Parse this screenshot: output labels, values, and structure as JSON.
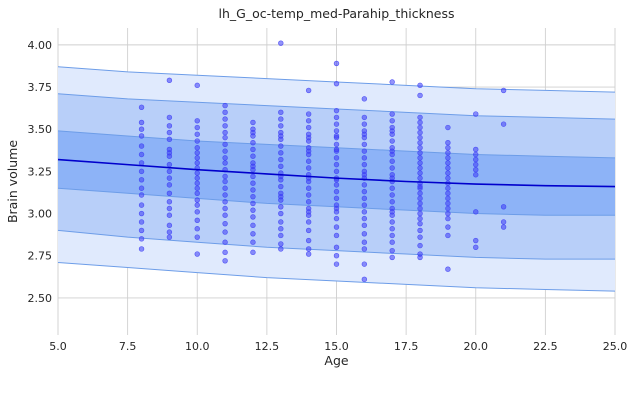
{
  "chart_data": {
    "type": "scatter",
    "title": "lh_G_oc-temp_med-Parahip_thickness",
    "xlabel": "Age",
    "ylabel": "Brain volume",
    "xlim": [
      5.0,
      25.0
    ],
    "ylim": [
      2.28,
      4.1
    ],
    "x_ticks": [
      "5.0",
      "7.5",
      "10.0",
      "12.5",
      "15.0",
      "17.5",
      "20.0",
      "22.5",
      "25.0"
    ],
    "x_tick_values": [
      5.0,
      7.5,
      10.0,
      12.5,
      15.0,
      17.5,
      20.0,
      22.5,
      25.0
    ],
    "y_ticks": [
      "2.50",
      "2.75",
      "3.00",
      "3.25",
      "3.50",
      "3.75",
      "4.00"
    ],
    "y_tick_values": [
      2.5,
      2.75,
      3.0,
      3.25,
      3.5,
      3.75,
      4.0
    ],
    "grid": true,
    "colors": {
      "points": "#3b3bf5",
      "mean_line": "#0000cc",
      "band_inner": "#8db3f7",
      "band_middle": "#b8cff9",
      "band_outer": "#e0eafd",
      "band_edge": "#6d9de8"
    },
    "mean_curve": {
      "x": [
        5,
        7.5,
        10,
        12.5,
        15,
        17.5,
        20,
        22.5,
        25
      ],
      "y": [
        3.32,
        3.29,
        3.26,
        3.235,
        3.21,
        3.19,
        3.175,
        3.165,
        3.16
      ]
    },
    "bands": [
      {
        "level": "outer",
        "upper": [
          3.87,
          3.84,
          3.82,
          3.8,
          3.78,
          3.76,
          3.74,
          3.73,
          3.72
        ],
        "lower": [
          2.71,
          2.68,
          2.65,
          2.62,
          2.6,
          2.58,
          2.56,
          2.55,
          2.54
        ]
      },
      {
        "level": "middle",
        "upper": [
          3.71,
          3.68,
          3.66,
          3.64,
          3.62,
          3.6,
          3.58,
          3.57,
          3.56
        ],
        "lower": [
          2.9,
          2.86,
          2.83,
          2.8,
          2.78,
          2.76,
          2.74,
          2.73,
          2.73
        ]
      },
      {
        "level": "inner",
        "upper": [
          3.49,
          3.46,
          3.43,
          3.41,
          3.39,
          3.37,
          3.35,
          3.34,
          3.33
        ],
        "lower": [
          3.15,
          3.12,
          3.09,
          3.06,
          3.04,
          3.02,
          3.0,
          2.99,
          2.99
        ]
      }
    ],
    "points": {
      "x": [
        8,
        8,
        8,
        8,
        8,
        8,
        8,
        8,
        8,
        8,
        8,
        8,
        8,
        8,
        8,
        8,
        8,
        9,
        9,
        9,
        9,
        9,
        9,
        9,
        9,
        9,
        9,
        9,
        9,
        9,
        9,
        9,
        9,
        9,
        9,
        9,
        10,
        10,
        10,
        10,
        10,
        10,
        10,
        10,
        10,
        10,
        10,
        10,
        10,
        10,
        10,
        10,
        10,
        10,
        10,
        10,
        10,
        10,
        11,
        11,
        11,
        11,
        11,
        11,
        11,
        11,
        11,
        11,
        11,
        11,
        11,
        11,
        11,
        11,
        11,
        11,
        11,
        11,
        11,
        11,
        11,
        12,
        12,
        12,
        12,
        12,
        12,
        12,
        12,
        12,
        12,
        12,
        12,
        12,
        12,
        12,
        12,
        12,
        12,
        12,
        12,
        12,
        13,
        13,
        13,
        13,
        13,
        13,
        13,
        13,
        13,
        13,
        13,
        13,
        13,
        13,
        13,
        13,
        13,
        13,
        13,
        13,
        13,
        13,
        13,
        13,
        13,
        14,
        14,
        14,
        14,
        14,
        14,
        14,
        14,
        14,
        14,
        14,
        14,
        14,
        14,
        14,
        14,
        14,
        14,
        14,
        14,
        14,
        14,
        14,
        14,
        14,
        14,
        15,
        15,
        15,
        15,
        15,
        15,
        15,
        15,
        15,
        15,
        15,
        15,
        15,
        15,
        15,
        15,
        15,
        15,
        15,
        15,
        15,
        15,
        15,
        15,
        15,
        15,
        15,
        15,
        16,
        16,
        16,
        16,
        16,
        16,
        16,
        16,
        16,
        16,
        16,
        16,
        16,
        16,
        16,
        16,
        16,
        16,
        16,
        16,
        16,
        16,
        16,
        16,
        16,
        17,
        17,
        17,
        17,
        17,
        17,
        17,
        17,
        17,
        17,
        17,
        17,
        17,
        17,
        17,
        17,
        17,
        17,
        17,
        17,
        17,
        17,
        17,
        17,
        17,
        17,
        17,
        18,
        18,
        18,
        18,
        18,
        18,
        18,
        18,
        18,
        18,
        18,
        18,
        18,
        18,
        18,
        18,
        18,
        18,
        18,
        18,
        18,
        18,
        18,
        18,
        18,
        18,
        18,
        18,
        18,
        18,
        19,
        19,
        19,
        19,
        19,
        19,
        19,
        19,
        19,
        19,
        19,
        19,
        19,
        19,
        19,
        19,
        19,
        19,
        19,
        19,
        20,
        20,
        20,
        20,
        20,
        20,
        20,
        20,
        20,
        20,
        21,
        21,
        21,
        21,
        21
      ],
      "y": [
        3.63,
        3.54,
        3.5,
        3.46,
        3.4,
        3.35,
        3.3,
        3.25,
        3.2,
        3.15,
        3.11,
        3.05,
        3.0,
        2.95,
        2.9,
        2.85,
        2.79,
        3.79,
        3.57,
        3.52,
        3.48,
        3.44,
        3.38,
        3.34,
        3.29,
        3.25,
        3.21,
        3.17,
        3.12,
        3.07,
        3.03,
        2.99,
        2.93,
        2.89,
        2.86,
        3.36,
        3.76,
        3.55,
        3.51,
        3.47,
        3.43,
        3.39,
        3.36,
        3.33,
        3.3,
        3.27,
        3.24,
        3.21,
        3.18,
        3.15,
        3.12,
        3.08,
        3.05,
        3.01,
        2.96,
        2.91,
        2.86,
        2.76,
        3.64,
        3.6,
        3.56,
        3.52,
        3.48,
        3.45,
        3.41,
        3.37,
        3.33,
        3.3,
        3.26,
        3.22,
        3.19,
        3.15,
        3.11,
        3.07,
        3.03,
        2.99,
        2.94,
        2.89,
        2.83,
        2.77,
        2.72,
        3.54,
        3.5,
        3.46,
        3.42,
        3.38,
        3.34,
        3.3,
        3.26,
        3.22,
        3.18,
        3.14,
        3.1,
        3.06,
        3.02,
        2.98,
        2.93,
        2.88,
        2.83,
        2.77,
        3.48,
        3.28,
        4.01,
        3.6,
        3.56,
        3.52,
        3.48,
        3.44,
        3.4,
        3.36,
        3.32,
        3.28,
        3.24,
        3.2,
        3.16,
        3.12,
        3.08,
        3.04,
        3.0,
        2.95,
        2.91,
        2.87,
        2.82,
        2.79,
        3.46,
        3.22,
        3.1,
        3.73,
        3.59,
        3.55,
        3.51,
        3.47,
        3.43,
        3.39,
        3.35,
        3.31,
        3.27,
        3.23,
        3.19,
        3.15,
        3.11,
        3.07,
        3.03,
        2.99,
        2.95,
        2.9,
        2.84,
        2.79,
        2.76,
        3.45,
        3.37,
        3.21,
        3.01,
        3.89,
        3.77,
        3.61,
        3.57,
        3.53,
        3.49,
        3.45,
        3.41,
        3.37,
        3.33,
        3.29,
        3.25,
        3.21,
        3.17,
        3.13,
        3.09,
        3.05,
        3.01,
        2.97,
        2.92,
        2.87,
        2.8,
        2.75,
        2.7,
        3.46,
        3.38,
        3.2,
        3.03,
        3.68,
        3.57,
        3.53,
        3.49,
        3.45,
        3.41,
        3.37,
        3.33,
        3.29,
        3.25,
        3.21,
        3.17,
        3.13,
        3.09,
        3.05,
        3.01,
        2.97,
        2.93,
        2.88,
        2.83,
        2.79,
        2.7,
        2.61,
        3.47,
        3.23,
        3.78,
        3.59,
        3.55,
        3.51,
        3.47,
        3.43,
        3.39,
        3.35,
        3.31,
        3.27,
        3.23,
        3.19,
        3.15,
        3.11,
        3.07,
        3.03,
        2.99,
        2.95,
        2.91,
        2.87,
        2.83,
        2.78,
        2.74,
        3.49,
        3.37,
        3.21,
        3.01,
        3.76,
        3.7,
        3.57,
        3.54,
        3.51,
        3.48,
        3.45,
        3.42,
        3.39,
        3.36,
        3.33,
        3.3,
        3.27,
        3.24,
        3.21,
        3.18,
        3.15,
        3.12,
        3.09,
        3.06,
        3.03,
        3.0,
        2.97,
        2.94,
        2.9,
        2.86,
        2.81,
        2.76,
        2.74,
        3.16,
        3.51,
        3.42,
        3.39,
        3.36,
        3.33,
        3.3,
        3.27,
        3.24,
        3.21,
        3.18,
        3.15,
        3.12,
        3.09,
        3.06,
        3.03,
        3.0,
        2.97,
        2.92,
        2.87,
        2.67,
        3.59,
        3.38,
        3.35,
        3.32,
        3.29,
        3.26,
        3.23,
        3.01,
        2.84,
        2.8,
        3.73,
        3.53,
        3.04,
        2.95,
        2.92
      ]
    }
  }
}
